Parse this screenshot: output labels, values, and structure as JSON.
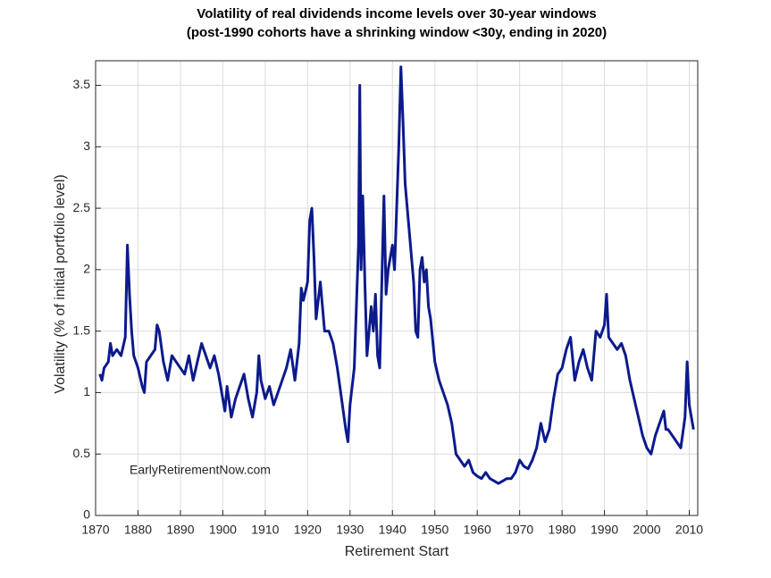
{
  "chart_data": {
    "type": "line",
    "title": "Volatility of real dividends income levels over 30-year windows",
    "subtitle": "(post-1990 cohorts have a shrinking window <30y, ending in 2020)",
    "x_label": "Retirement Start",
    "y_label": "Volatility (% of initial portfolio level)",
    "annotation": "EarlyRetirementNow.com",
    "x": [
      1871,
      1871.5,
      1872,
      1873,
      1873.5,
      1874,
      1875,
      1876,
      1877,
      1877.5,
      1878,
      1878.5,
      1879,
      1880,
      1881,
      1881.5,
      1882,
      1883,
      1884,
      1884.5,
      1885,
      1886,
      1887,
      1888,
      1889,
      1890,
      1891,
      1892,
      1893,
      1894,
      1895,
      1896,
      1897,
      1898,
      1899,
      1900,
      1900.5,
      1901,
      1902,
      1903,
      1904,
      1905,
      1906,
      1907,
      1908,
      1908.5,
      1909,
      1910,
      1911,
      1912,
      1913,
      1914,
      1915,
      1916,
      1917,
      1918,
      1918.5,
      1919,
      1920,
      1920.5,
      1921,
      1921.5,
      1922,
      1923,
      1924,
      1925,
      1926,
      1927,
      1928,
      1929,
      1929.5,
      1930,
      1931,
      1931.5,
      1932,
      1932.3,
      1932.6,
      1933,
      1933.5,
      1934,
      1935,
      1935.5,
      1936,
      1936.5,
      1937,
      1937.5,
      1938,
      1938.5,
      1939,
      1940,
      1940.5,
      1941,
      1941.5,
      1942,
      1942.5,
      1943,
      1943.5,
      1944,
      1945,
      1945.5,
      1946,
      1946.5,
      1947,
      1947.5,
      1948,
      1948.5,
      1949,
      1950,
      1951,
      1952,
      1953,
      1954,
      1955,
      1956,
      1957,
      1958,
      1959,
      1960,
      1961,
      1962,
      1963,
      1964,
      1965,
      1966,
      1967,
      1968,
      1969,
      1970,
      1971,
      1972,
      1973,
      1974,
      1975,
      1976,
      1977,
      1978,
      1979,
      1980,
      1981,
      1982,
      1983,
      1984,
      1985,
      1986,
      1987,
      1988,
      1989,
      1990,
      1990.5,
      1991,
      1992,
      1993,
      1994,
      1995,
      1996,
      1997,
      1998,
      1999,
      2000,
      2001,
      2002,
      2003,
      2004,
      2004.5,
      2005,
      2006,
      2007,
      2008,
      2009,
      2009.5,
      2010,
      2010.5,
      2011
    ],
    "series": [
      {
        "name": "Volatility",
        "color": "#0c1a8c",
        "values": [
          1.15,
          1.1,
          1.2,
          1.25,
          1.4,
          1.3,
          1.35,
          1.3,
          1.45,
          2.2,
          1.8,
          1.5,
          1.3,
          1.2,
          1.05,
          1.0,
          1.25,
          1.3,
          1.35,
          1.55,
          1.5,
          1.25,
          1.1,
          1.3,
          1.25,
          1.2,
          1.15,
          1.3,
          1.1,
          1.25,
          1.4,
          1.3,
          1.2,
          1.3,
          1.15,
          0.95,
          0.85,
          1.05,
          0.8,
          0.95,
          1.05,
          1.15,
          0.95,
          0.8,
          1.0,
          1.3,
          1.1,
          0.95,
          1.05,
          0.9,
          1.0,
          1.1,
          1.2,
          1.35,
          1.1,
          1.4,
          1.85,
          1.75,
          1.9,
          2.4,
          2.5,
          2.1,
          1.6,
          1.9,
          1.5,
          1.5,
          1.4,
          1.2,
          0.95,
          0.7,
          0.6,
          0.9,
          1.2,
          1.7,
          2.2,
          3.5,
          2.0,
          2.6,
          1.9,
          1.3,
          1.7,
          1.5,
          1.8,
          1.3,
          1.2,
          1.9,
          2.6,
          1.8,
          2.0,
          2.2,
          2.0,
          2.5,
          3.0,
          3.65,
          3.2,
          2.7,
          2.5,
          2.3,
          1.9,
          1.5,
          1.45,
          2.0,
          2.1,
          1.9,
          2.0,
          1.7,
          1.6,
          1.25,
          1.1,
          1.0,
          0.9,
          0.75,
          0.5,
          0.45,
          0.4,
          0.45,
          0.35,
          0.32,
          0.3,
          0.35,
          0.3,
          0.28,
          0.26,
          0.28,
          0.3,
          0.3,
          0.35,
          0.45,
          0.4,
          0.38,
          0.45,
          0.55,
          0.75,
          0.6,
          0.7,
          0.95,
          1.15,
          1.2,
          1.35,
          1.45,
          1.1,
          1.25,
          1.35,
          1.2,
          1.1,
          1.5,
          1.45,
          1.55,
          1.8,
          1.45,
          1.4,
          1.35,
          1.4,
          1.3,
          1.1,
          0.95,
          0.8,
          0.65,
          0.55,
          0.5,
          0.65,
          0.75,
          0.85,
          0.7,
          0.7,
          0.65,
          0.6,
          0.55,
          0.8,
          1.25,
          0.9,
          0.8,
          0.7
        ]
      }
    ],
    "xlim": [
      1870,
      2012
    ],
    "xticks": [
      1870,
      1880,
      1890,
      1900,
      1910,
      1920,
      1930,
      1940,
      1950,
      1960,
      1970,
      1980,
      1990,
      2000,
      2010
    ],
    "ylim": [
      0,
      3.7
    ],
    "yticks": [
      0,
      0.5,
      1,
      1.5,
      2,
      2.5,
      3,
      3.5
    ],
    "grid": true
  }
}
